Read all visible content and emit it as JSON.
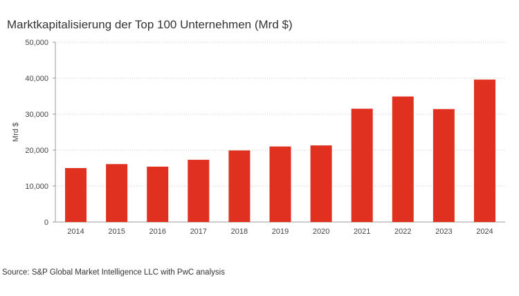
{
  "chart_data": {
    "type": "bar",
    "title": "Marktkapitalisierung der Top 100 Unternehmen (Mrd $)",
    "xlabel": "",
    "ylabel": "Mrd $",
    "ylim": [
      0,
      50000
    ],
    "yticks": [
      0,
      10000,
      20000,
      30000,
      40000,
      50000
    ],
    "ytick_labels": [
      "0",
      "10,000",
      "20,000",
      "30,000",
      "40,000",
      "50,000"
    ],
    "categories": [
      "2014",
      "2015",
      "2016",
      "2017",
      "2018",
      "2019",
      "2020",
      "2021",
      "2022",
      "2023",
      "2024"
    ],
    "values": [
      15000,
      16100,
      15400,
      17300,
      19900,
      21000,
      21300,
      31500,
      34900,
      31400,
      39600
    ],
    "grid": true,
    "bar_color": "#e03120"
  },
  "source": "Source: S&P Global Market Intelligence LLC with PwC analysis"
}
